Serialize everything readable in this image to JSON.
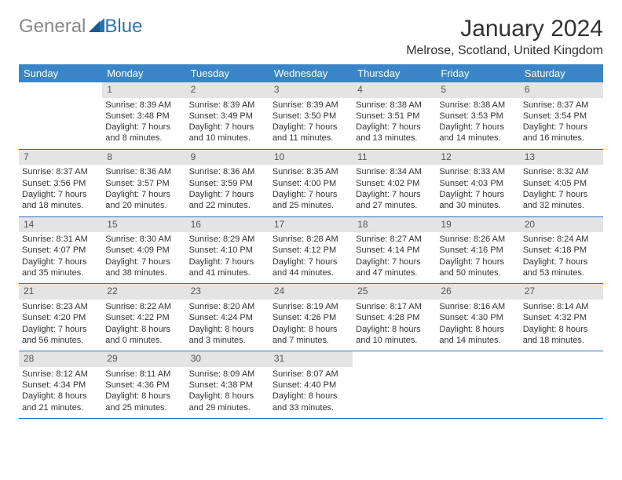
{
  "logo": {
    "part1": "General",
    "part2": "Blue"
  },
  "title": "January 2024",
  "location": "Melrose, Scotland, United Kingdom",
  "days_of_week": [
    "Sunday",
    "Monday",
    "Tuesday",
    "Wednesday",
    "Thursday",
    "Friday",
    "Saturday"
  ],
  "colors": {
    "header_bg": "#3a85c8",
    "header_text": "#ffffff",
    "daynum_bg": "#e4e4e4",
    "week_border": "#2a73b8",
    "logo_gray": "#888888",
    "logo_blue": "#2a73b8"
  },
  "typography": {
    "title_fontsize": 30,
    "location_fontsize": 16,
    "dow_fontsize": 13,
    "body_fontsize": 11
  },
  "weeks": [
    [
      {
        "n": "",
        "sunrise": "",
        "sunset": "",
        "daylight1": "",
        "daylight2": ""
      },
      {
        "n": "1",
        "sunrise": "Sunrise: 8:39 AM",
        "sunset": "Sunset: 3:48 PM",
        "daylight1": "Daylight: 7 hours",
        "daylight2": "and 8 minutes."
      },
      {
        "n": "2",
        "sunrise": "Sunrise: 8:39 AM",
        "sunset": "Sunset: 3:49 PM",
        "daylight1": "Daylight: 7 hours",
        "daylight2": "and 10 minutes."
      },
      {
        "n": "3",
        "sunrise": "Sunrise: 8:39 AM",
        "sunset": "Sunset: 3:50 PM",
        "daylight1": "Daylight: 7 hours",
        "daylight2": "and 11 minutes."
      },
      {
        "n": "4",
        "sunrise": "Sunrise: 8:38 AM",
        "sunset": "Sunset: 3:51 PM",
        "daylight1": "Daylight: 7 hours",
        "daylight2": "and 13 minutes."
      },
      {
        "n": "5",
        "sunrise": "Sunrise: 8:38 AM",
        "sunset": "Sunset: 3:53 PM",
        "daylight1": "Daylight: 7 hours",
        "daylight2": "and 14 minutes."
      },
      {
        "n": "6",
        "sunrise": "Sunrise: 8:37 AM",
        "sunset": "Sunset: 3:54 PM",
        "daylight1": "Daylight: 7 hours",
        "daylight2": "and 16 minutes."
      }
    ],
    [
      {
        "n": "7",
        "sunrise": "Sunrise: 8:37 AM",
        "sunset": "Sunset: 3:56 PM",
        "daylight1": "Daylight: 7 hours",
        "daylight2": "and 18 minutes."
      },
      {
        "n": "8",
        "sunrise": "Sunrise: 8:36 AM",
        "sunset": "Sunset: 3:57 PM",
        "daylight1": "Daylight: 7 hours",
        "daylight2": "and 20 minutes."
      },
      {
        "n": "9",
        "sunrise": "Sunrise: 8:36 AM",
        "sunset": "Sunset: 3:59 PM",
        "daylight1": "Daylight: 7 hours",
        "daylight2": "and 22 minutes."
      },
      {
        "n": "10",
        "sunrise": "Sunrise: 8:35 AM",
        "sunset": "Sunset: 4:00 PM",
        "daylight1": "Daylight: 7 hours",
        "daylight2": "and 25 minutes."
      },
      {
        "n": "11",
        "sunrise": "Sunrise: 8:34 AM",
        "sunset": "Sunset: 4:02 PM",
        "daylight1": "Daylight: 7 hours",
        "daylight2": "and 27 minutes."
      },
      {
        "n": "12",
        "sunrise": "Sunrise: 8:33 AM",
        "sunset": "Sunset: 4:03 PM",
        "daylight1": "Daylight: 7 hours",
        "daylight2": "and 30 minutes."
      },
      {
        "n": "13",
        "sunrise": "Sunrise: 8:32 AM",
        "sunset": "Sunset: 4:05 PM",
        "daylight1": "Daylight: 7 hours",
        "daylight2": "and 32 minutes."
      }
    ],
    [
      {
        "n": "14",
        "sunrise": "Sunrise: 8:31 AM",
        "sunset": "Sunset: 4:07 PM",
        "daylight1": "Daylight: 7 hours",
        "daylight2": "and 35 minutes."
      },
      {
        "n": "15",
        "sunrise": "Sunrise: 8:30 AM",
        "sunset": "Sunset: 4:09 PM",
        "daylight1": "Daylight: 7 hours",
        "daylight2": "and 38 minutes."
      },
      {
        "n": "16",
        "sunrise": "Sunrise: 8:29 AM",
        "sunset": "Sunset: 4:10 PM",
        "daylight1": "Daylight: 7 hours",
        "daylight2": "and 41 minutes."
      },
      {
        "n": "17",
        "sunrise": "Sunrise: 8:28 AM",
        "sunset": "Sunset: 4:12 PM",
        "daylight1": "Daylight: 7 hours",
        "daylight2": "and 44 minutes."
      },
      {
        "n": "18",
        "sunrise": "Sunrise: 8:27 AM",
        "sunset": "Sunset: 4:14 PM",
        "daylight1": "Daylight: 7 hours",
        "daylight2": "and 47 minutes."
      },
      {
        "n": "19",
        "sunrise": "Sunrise: 8:26 AM",
        "sunset": "Sunset: 4:16 PM",
        "daylight1": "Daylight: 7 hours",
        "daylight2": "and 50 minutes."
      },
      {
        "n": "20",
        "sunrise": "Sunrise: 8:24 AM",
        "sunset": "Sunset: 4:18 PM",
        "daylight1": "Daylight: 7 hours",
        "daylight2": "and 53 minutes."
      }
    ],
    [
      {
        "n": "21",
        "sunrise": "Sunrise: 8:23 AM",
        "sunset": "Sunset: 4:20 PM",
        "daylight1": "Daylight: 7 hours",
        "daylight2": "and 56 minutes."
      },
      {
        "n": "22",
        "sunrise": "Sunrise: 8:22 AM",
        "sunset": "Sunset: 4:22 PM",
        "daylight1": "Daylight: 8 hours",
        "daylight2": "and 0 minutes."
      },
      {
        "n": "23",
        "sunrise": "Sunrise: 8:20 AM",
        "sunset": "Sunset: 4:24 PM",
        "daylight1": "Daylight: 8 hours",
        "daylight2": "and 3 minutes."
      },
      {
        "n": "24",
        "sunrise": "Sunrise: 8:19 AM",
        "sunset": "Sunset: 4:26 PM",
        "daylight1": "Daylight: 8 hours",
        "daylight2": "and 7 minutes."
      },
      {
        "n": "25",
        "sunrise": "Sunrise: 8:17 AM",
        "sunset": "Sunset: 4:28 PM",
        "daylight1": "Daylight: 8 hours",
        "daylight2": "and 10 minutes."
      },
      {
        "n": "26",
        "sunrise": "Sunrise: 8:16 AM",
        "sunset": "Sunset: 4:30 PM",
        "daylight1": "Daylight: 8 hours",
        "daylight2": "and 14 minutes."
      },
      {
        "n": "27",
        "sunrise": "Sunrise: 8:14 AM",
        "sunset": "Sunset: 4:32 PM",
        "daylight1": "Daylight: 8 hours",
        "daylight2": "and 18 minutes."
      }
    ],
    [
      {
        "n": "28",
        "sunrise": "Sunrise: 8:12 AM",
        "sunset": "Sunset: 4:34 PM",
        "daylight1": "Daylight: 8 hours",
        "daylight2": "and 21 minutes."
      },
      {
        "n": "29",
        "sunrise": "Sunrise: 8:11 AM",
        "sunset": "Sunset: 4:36 PM",
        "daylight1": "Daylight: 8 hours",
        "daylight2": "and 25 minutes."
      },
      {
        "n": "30",
        "sunrise": "Sunrise: 8:09 AM",
        "sunset": "Sunset: 4:38 PM",
        "daylight1": "Daylight: 8 hours",
        "daylight2": "and 29 minutes."
      },
      {
        "n": "31",
        "sunrise": "Sunrise: 8:07 AM",
        "sunset": "Sunset: 4:40 PM",
        "daylight1": "Daylight: 8 hours",
        "daylight2": "and 33 minutes."
      },
      {
        "n": "",
        "sunrise": "",
        "sunset": "",
        "daylight1": "",
        "daylight2": ""
      },
      {
        "n": "",
        "sunrise": "",
        "sunset": "",
        "daylight1": "",
        "daylight2": ""
      },
      {
        "n": "",
        "sunrise": "",
        "sunset": "",
        "daylight1": "",
        "daylight2": ""
      }
    ]
  ]
}
